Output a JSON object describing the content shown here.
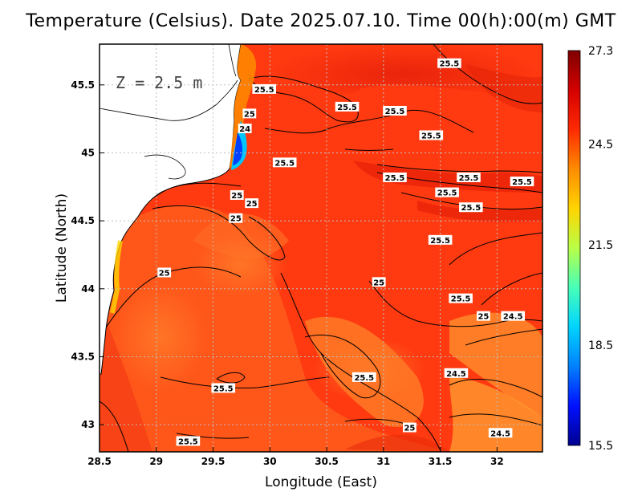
{
  "title": "Temperature (Celsius). Date 2025.07.10. Time 00(h):00(m) GMT",
  "depth_label": "Z = 2.5 m",
  "x_axis": {
    "label": "Longitude (East)",
    "ticks": [
      "28.5",
      "29",
      "29.5",
      "30",
      "30.5",
      "31",
      "31.5",
      "32"
    ]
  },
  "y_axis": {
    "label": "Latitude (North)",
    "ticks": [
      "45.5",
      "45",
      "44.5",
      "44",
      "43.5",
      "43"
    ]
  },
  "colorbar": {
    "min": 15.5,
    "max": 27.3,
    "labels": [
      "27.3",
      "24.5",
      "21.5",
      "18.5",
      "15.5"
    ],
    "colors": [
      "#7f0000",
      "#d40000",
      "#ff2a00",
      "#ff8c00",
      "#ffd400",
      "#b8ff47",
      "#47ffb8",
      "#00d4ff",
      "#0080ff",
      "#0010ff",
      "#00008f"
    ]
  },
  "map_colors": {
    "sea_warm": "#ff3a10",
    "sea_hot": "#ee2a0a",
    "sea_cool": "#ff6a20",
    "land": "#ffffff",
    "coast": "#000000",
    "grid": "#bfbfbf"
  },
  "chart_data": {
    "type": "heatmap",
    "title": "Temperature (Celsius). Date 2025.07.10. Time 00(h):00(m) GMT",
    "xlabel": "Longitude (East)",
    "ylabel": "Latitude (North)",
    "xlim": [
      28.5,
      32.4
    ],
    "ylim": [
      42.8,
      45.8
    ],
    "zlim": [
      15.5,
      27.3
    ],
    "grid": true,
    "contour_labels": [
      {
        "lon": 29.95,
        "lat": 45.47,
        "text": "25.5"
      },
      {
        "lon": 30.68,
        "lat": 45.34,
        "text": "25.5"
      },
      {
        "lon": 31.1,
        "lat": 45.31,
        "text": "25.5"
      },
      {
        "lon": 31.58,
        "lat": 45.66,
        "text": "25.5"
      },
      {
        "lon": 31.42,
        "lat": 45.13,
        "text": "25.5"
      },
      {
        "lon": 30.13,
        "lat": 44.93,
        "text": "25.5"
      },
      {
        "lon": 31.1,
        "lat": 44.82,
        "text": "25.5"
      },
      {
        "lon": 31.75,
        "lat": 44.82,
        "text": "25.5"
      },
      {
        "lon": 31.56,
        "lat": 44.71,
        "text": "25.5"
      },
      {
        "lon": 32.22,
        "lat": 44.79,
        "text": "25.5"
      },
      {
        "lon": 31.77,
        "lat": 44.6,
        "text": "25.5"
      },
      {
        "lon": 31.5,
        "lat": 44.36,
        "text": "25.5"
      },
      {
        "lon": 31.68,
        "lat": 43.93,
        "text": "25.5"
      },
      {
        "lon": 30.83,
        "lat": 43.35,
        "text": "25.5"
      },
      {
        "lon": 29.59,
        "lat": 43.27,
        "text": "25.5"
      },
      {
        "lon": 29.28,
        "lat": 42.88,
        "text": "25.5"
      },
      {
        "lon": 29.82,
        "lat": 45.29,
        "text": "25"
      },
      {
        "lon": 29.71,
        "lat": 44.69,
        "text": "25"
      },
      {
        "lon": 29.84,
        "lat": 44.63,
        "text": "25"
      },
      {
        "lon": 29.7,
        "lat": 44.52,
        "text": "25"
      },
      {
        "lon": 29.07,
        "lat": 44.12,
        "text": "25"
      },
      {
        "lon": 30.96,
        "lat": 44.05,
        "text": "25"
      },
      {
        "lon": 31.88,
        "lat": 43.8,
        "text": "25"
      },
      {
        "lon": 31.23,
        "lat": 42.98,
        "text": "25"
      },
      {
        "lon": 29.78,
        "lat": 45.18,
        "text": "24"
      },
      {
        "lon": 32.14,
        "lat": 43.8,
        "text": "24.5"
      },
      {
        "lon": 31.64,
        "lat": 43.38,
        "text": "24.5"
      },
      {
        "lon": 32.03,
        "lat": 42.94,
        "text": "24.5"
      }
    ]
  }
}
